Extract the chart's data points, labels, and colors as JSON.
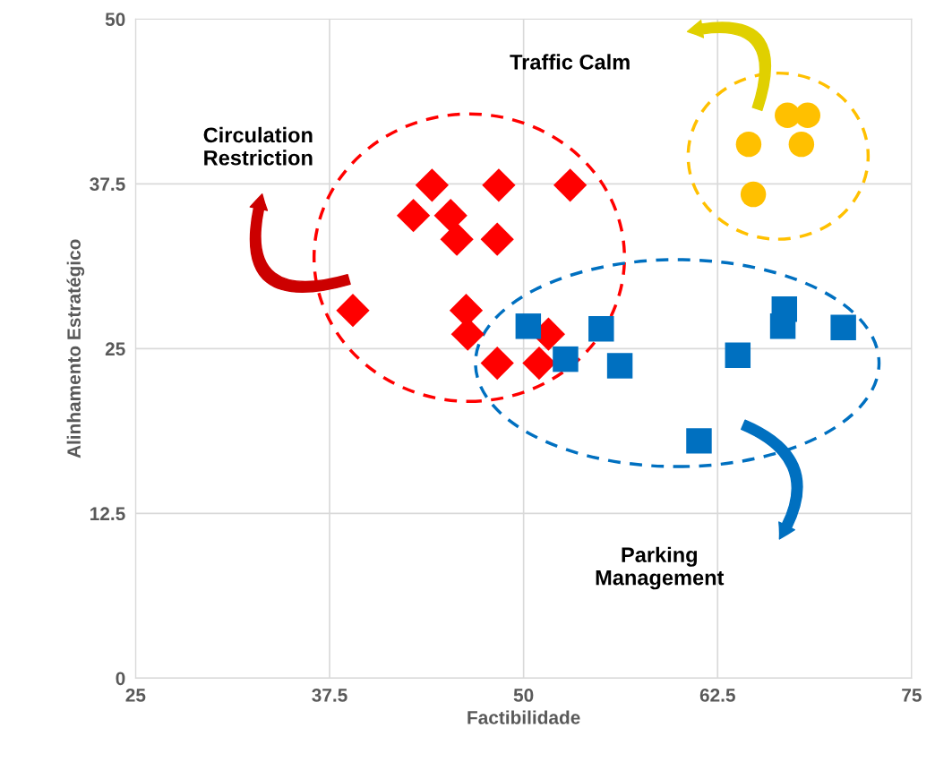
{
  "chart_data": {
    "type": "scatter",
    "xlabel": "Factibilidade",
    "ylabel": "Alinhamento Estratégico",
    "xlim": [
      25,
      75
    ],
    "xticks": [
      25,
      37.5,
      50,
      62.5,
      75
    ],
    "ylim": [
      0,
      50
    ],
    "yticks": [
      0,
      12.5,
      25,
      37.5,
      50
    ],
    "grid": true,
    "series": [
      {
        "color": "#ff0000",
        "marker": "diamond",
        "x": [
          39.0,
          44.1,
          42.9,
          45.3,
          45.7,
          48.4,
          48.3,
          53.0,
          46.3,
          46.4,
          48.3,
          51.6,
          51.0
        ],
        "values": [
          27.9,
          37.4,
          35.1,
          35.1,
          33.3,
          37.4,
          33.3,
          37.4,
          27.9,
          26.1,
          23.9,
          26.1,
          23.9
        ]
      },
      {
        "color": "#0070c0",
        "marker": "square",
        "x": [
          50.3,
          52.7,
          55.0,
          56.2,
          61.3,
          63.8,
          66.8,
          66.7,
          70.6
        ],
        "values": [
          26.7,
          24.2,
          26.5,
          23.7,
          18.0,
          24.5,
          28.0,
          26.7,
          26.6
        ]
      },
      {
        "color": "#ffc000",
        "marker": "circle",
        "x": [
          64.5,
          64.8,
          67.0,
          68.3,
          67.9
        ],
        "values": [
          40.5,
          36.7,
          42.7,
          42.7,
          40.5
        ]
      }
    ],
    "annotations": [
      "Traffic Calm",
      "Circulation\nRestriction",
      "Parking\nManagement"
    ]
  }
}
